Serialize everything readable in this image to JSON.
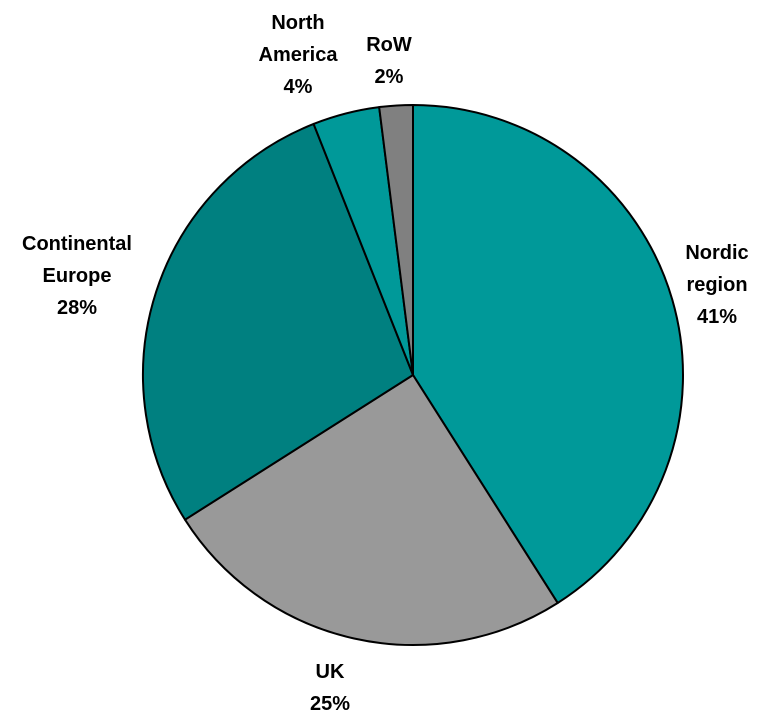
{
  "chart_data": {
    "type": "pie",
    "start_angle_deg": 0,
    "direction": "clockwise",
    "slices": [
      {
        "label_lines": [
          "Nordic",
          "region"
        ],
        "value_label": "41%",
        "value": 41,
        "color": "#009999"
      },
      {
        "label_lines": [
          "UK"
        ],
        "value_label": "25%",
        "value": 25,
        "color": "#999999"
      },
      {
        "label_lines": [
          "Continental",
          "Europe"
        ],
        "value_label": "28%",
        "value": 28,
        "color": "#008080"
      },
      {
        "label_lines": [
          "North",
          "America"
        ],
        "value_label": "4%",
        "value": 4,
        "color": "#009999"
      },
      {
        "label_lines": [
          "RoW"
        ],
        "value_label": "2%",
        "value": 2,
        "color": "#808080"
      }
    ]
  }
}
